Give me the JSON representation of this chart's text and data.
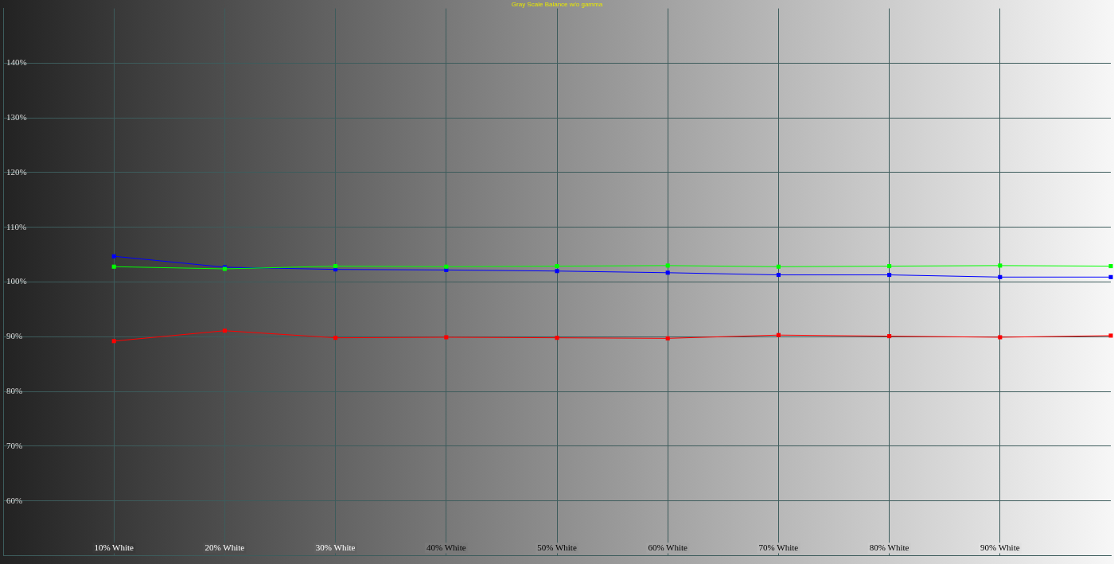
{
  "chart_data": {
    "type": "line",
    "title": "Gray Scale Balance w/o gamma",
    "x": [
      10,
      20,
      30,
      40,
      50,
      60,
      70,
      80,
      90,
      100
    ],
    "series": [
      {
        "color": "#ff0000",
        "values": [
          89.2,
          91.1,
          89.8,
          89.9,
          89.8,
          89.7,
          90.3,
          90.1,
          89.9,
          90.2
        ]
      },
      {
        "color": "#00ff00",
        "values": [
          102.8,
          102.4,
          102.9,
          102.8,
          102.9,
          103.0,
          102.8,
          102.9,
          103.0,
          102.9
        ]
      },
      {
        "color": "#0000ff",
        "values": [
          104.7,
          102.7,
          102.3,
          102.2,
          102.0,
          101.7,
          101.3,
          101.3,
          100.9,
          100.9
        ]
      }
    ],
    "xlim": [
      0,
      100
    ],
    "ylim": [
      50,
      150
    ],
    "xticks": [
      {
        "value": 10,
        "label": "10% White"
      },
      {
        "value": 20,
        "label": "20% White"
      },
      {
        "value": 30,
        "label": "30% White"
      },
      {
        "value": 40,
        "label": "40% White"
      },
      {
        "value": 50,
        "label": "50% White"
      },
      {
        "value": 60,
        "label": "60% White"
      },
      {
        "value": 70,
        "label": "70% White"
      },
      {
        "value": 80,
        "label": "80% White"
      },
      {
        "value": 90,
        "label": "90% White"
      }
    ],
    "yticks": [
      {
        "value": 60,
        "label": "60%"
      },
      {
        "value": 70,
        "label": "70%"
      },
      {
        "value": 80,
        "label": "80%"
      },
      {
        "value": 90,
        "label": "90%"
      },
      {
        "value": 100,
        "label": "100%"
      },
      {
        "value": 110,
        "label": "110%"
      },
      {
        "value": 120,
        "label": "120%"
      },
      {
        "value": 130,
        "label": "130%"
      },
      {
        "value": 140,
        "label": "140%"
      }
    ],
    "grid": true,
    "marker": "square",
    "line_style": "solid"
  }
}
